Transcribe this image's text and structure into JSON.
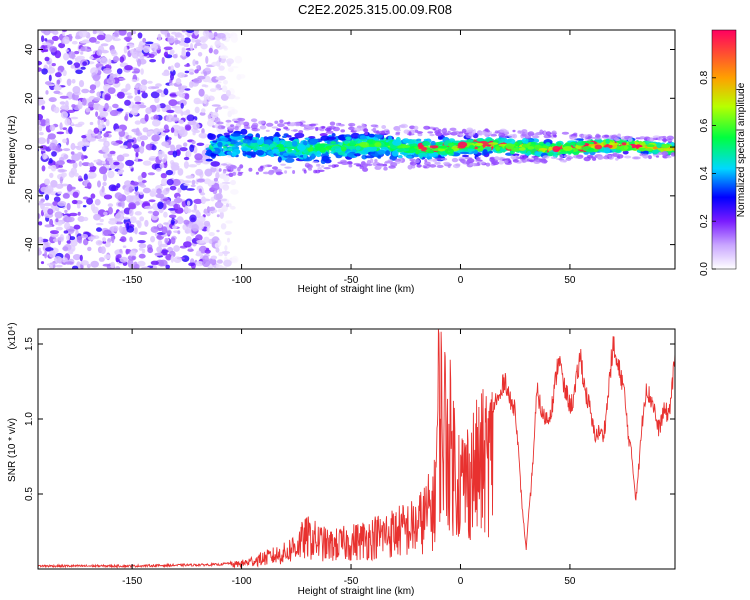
{
  "title": "C2E2.2025.315.00.09.R08",
  "chart_data": [
    {
      "type": "heatmap",
      "name": "spectrogram",
      "xlabel": "Height of straight line (km)",
      "ylabel": "Frequency (Hz)",
      "xlim": [
        -193,
        98
      ],
      "ylim": [
        -50,
        48
      ],
      "xticks": [
        -150,
        -100,
        -50,
        0,
        50
      ],
      "yticks": [
        -40,
        -20,
        0,
        20,
        40
      ],
      "colorbar": {
        "label": "Normalized spectral amplitude",
        "range": [
          0,
          1
        ],
        "ticks": [
          0.0,
          0.2,
          0.4,
          0.6,
          0.8
        ]
      },
      "regions": [
        {
          "name": "broadband-noise",
          "x_range": [
            -193,
            -105
          ],
          "freq_range": [
            -50,
            48
          ],
          "amplitude": 0.1
        },
        {
          "name": "signal-band",
          "x_range": [
            -115,
            98
          ],
          "center_hz": 0,
          "half_width_hz_start": 6,
          "half_width_hz_end": 2,
          "amplitude": [
            0.25,
            1.0
          ]
        }
      ]
    },
    {
      "type": "line",
      "name": "snr",
      "xlabel": "Height of straight line (km)",
      "ylabel": "SNR (10 * v/v)",
      "scale_label": "(x10⁴)",
      "xlim": [
        -193,
        98
      ],
      "ylim": [
        0,
        1.6
      ],
      "xticks": [
        -150,
        -100,
        -50,
        0,
        50
      ],
      "yticks": [
        0.5,
        1.0,
        1.5
      ],
      "ytick_labels": [
        "0.5",
        "1.0",
        "1.5"
      ],
      "color": "#e8312f",
      "series": [
        {
          "name": "SNR",
          "x": [
            -193,
            -150,
            -110,
            -100,
            -90,
            -80,
            -70,
            -60,
            -50,
            -40,
            -30,
            -20,
            -12,
            -10,
            -5,
            0,
            5,
            10,
            15,
            20,
            25,
            30,
            35,
            40,
            45,
            50,
            55,
            60,
            65,
            70,
            75,
            80,
            85,
            90,
            95,
            98
          ],
          "y": [
            0.02,
            0.02,
            0.03,
            0.05,
            0.1,
            0.15,
            0.3,
            0.22,
            0.25,
            0.3,
            0.35,
            0.4,
            0.6,
            1.5,
            1.2,
            0.8,
            0.9,
            1.0,
            1.1,
            1.3,
            1.1,
            0.1,
            1.2,
            1.0,
            1.45,
            1.1,
            1.45,
            1.0,
            0.9,
            1.55,
            1.2,
            0.5,
            1.3,
            1.0,
            1.1,
            1.4
          ]
        }
      ]
    }
  ]
}
